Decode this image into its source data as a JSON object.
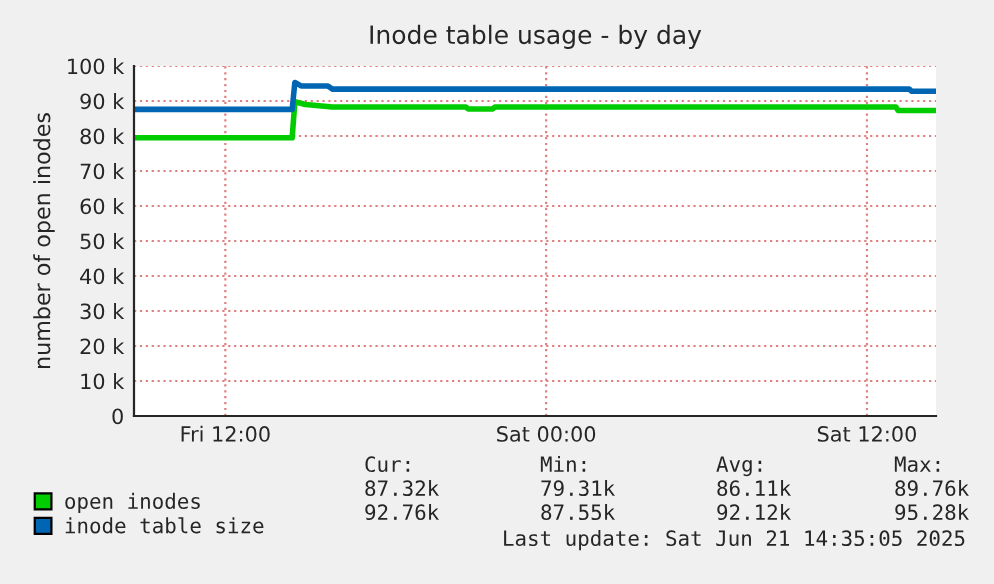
{
  "chart_data": {
    "type": "line",
    "title": "Inode table usage - by day",
    "ylabel": "number of open inodes",
    "xlim": [
      "2025-06-20T08:35",
      "2025-06-21T14:35"
    ],
    "xticks": [
      {
        "value": "2025-06-20T12:00",
        "label": "Fri 12:00"
      },
      {
        "value": "2025-06-21T00:00",
        "label": "Sat 00:00"
      },
      {
        "value": "2025-06-21T12:00",
        "label": "Sat 12:00"
      }
    ],
    "ylim": [
      0,
      100
    ],
    "yticks": [
      0,
      {
        "value": 10,
        "label": "10 k"
      },
      {
        "value": 20,
        "label": "20 k"
      },
      {
        "value": 30,
        "label": "30 k"
      },
      {
        "value": 40,
        "label": "40 k"
      },
      {
        "value": 50,
        "label": "50 k"
      },
      {
        "value": 60,
        "label": "60 k"
      },
      {
        "value": 70,
        "label": "70 k"
      },
      {
        "value": 80,
        "label": "80 k"
      },
      {
        "value": 90,
        "label": "90 k"
      },
      {
        "value": 100,
        "label": "100 k"
      }
    ],
    "grid": true,
    "legend": "bottom left",
    "series": [
      {
        "name": "open inodes",
        "color": "#00cc00",
        "x": [
          "2025-06-20T08:35",
          "2025-06-20T14:30",
          "2025-06-20T14:36",
          "2025-06-20T15:00",
          "2025-06-20T16:00",
          "2025-06-20T21:00",
          "2025-06-20T21:05",
          "2025-06-20T22:00",
          "2025-06-20T22:05",
          "2025-06-21T13:05",
          "2025-06-21T13:10",
          "2025-06-21T14:35"
        ],
        "values": [
          79.5,
          79.5,
          89.8,
          89.0,
          88.3,
          88.3,
          87.7,
          87.7,
          88.3,
          88.3,
          87.3,
          87.3
        ]
      },
      {
        "name": "inode table size",
        "color": "#0066b3",
        "x": [
          "2025-06-20T08:35",
          "2025-06-20T14:30",
          "2025-06-20T14:36",
          "2025-06-20T14:50",
          "2025-06-20T15:50",
          "2025-06-20T16:00",
          "2025-06-21T13:35",
          "2025-06-21T13:40",
          "2025-06-21T14:35"
        ],
        "values": [
          87.6,
          87.6,
          95.3,
          94.3,
          94.3,
          93.4,
          93.4,
          92.8,
          92.8
        ]
      }
    ],
    "annotations": [
      "Cur:",
      "Min:",
      "Avg:",
      "Max:",
      "87.32k",
      "79.31k",
      "86.11k",
      "89.76k",
      "92.76k",
      "87.55k",
      "92.12k",
      "95.28k",
      "Last update: Sat Jun 21 14:35:05 2025"
    ]
  }
}
